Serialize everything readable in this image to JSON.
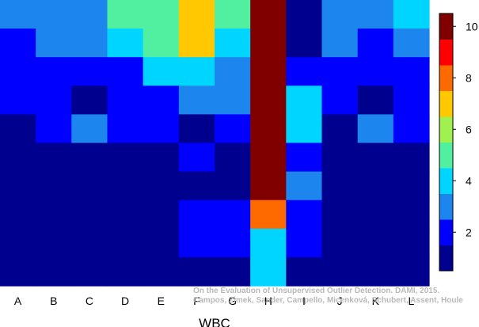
{
  "chart_data": {
    "type": "heatmap",
    "title": "",
    "xlabel": "WBC",
    "ylabel": "",
    "columns": [
      "A",
      "B",
      "C",
      "D",
      "E",
      "F",
      "G",
      "H",
      "I",
      "J",
      "K",
      "L"
    ],
    "rows": 10,
    "colorbar": {
      "ticks": [
        2,
        4,
        6,
        8,
        10
      ],
      "levels": [
        {
          "value": 1,
          "color": "#00008f"
        },
        {
          "value": 2,
          "color": "#0000ff"
        },
        {
          "value": 3,
          "color": "#1c86ee"
        },
        {
          "value": 4,
          "color": "#00d5ff"
        },
        {
          "value": 5,
          "color": "#50f0a0"
        },
        {
          "value": 6,
          "color": "#a0f050"
        },
        {
          "value": 7,
          "color": "#ffc800"
        },
        {
          "value": 8,
          "color": "#ff6a00"
        },
        {
          "value": 9,
          "color": "#ff0000"
        },
        {
          "value": 10,
          "color": "#800000"
        }
      ]
    },
    "values": [
      [
        3,
        3,
        3,
        5,
        5,
        7,
        5,
        10,
        1,
        3,
        3,
        4
      ],
      [
        2,
        3,
        3,
        4,
        5,
        7,
        4,
        10,
        1,
        3,
        2,
        3
      ],
      [
        2,
        2,
        2,
        2,
        4,
        4,
        3,
        10,
        2,
        2,
        2,
        2
      ],
      [
        2,
        2,
        1,
        2,
        2,
        3,
        3,
        10,
        4,
        2,
        1,
        2
      ],
      [
        1,
        2,
        3,
        2,
        2,
        1,
        2,
        10,
        4,
        1,
        3,
        2
      ],
      [
        1,
        1,
        1,
        1,
        1,
        2,
        1,
        10,
        2,
        1,
        1,
        1
      ],
      [
        1,
        1,
        1,
        1,
        1,
        1,
        1,
        10,
        3,
        1,
        1,
        1
      ],
      [
        1,
        1,
        1,
        1,
        1,
        2,
        2,
        8,
        2,
        1,
        1,
        1
      ],
      [
        1,
        1,
        1,
        1,
        1,
        2,
        2,
        4,
        2,
        1,
        1,
        1
      ],
      [
        1,
        1,
        1,
        1,
        1,
        1,
        1,
        4,
        1,
        1,
        1,
        1
      ]
    ]
  },
  "watermark": {
    "line1": "On the Evaluation of Unsupervised Outlier Detection. DAMI, 2015.",
    "line2": "Campos, Zimek, Sander, Campello, Micenková, Schubert, Assent, Houle"
  }
}
